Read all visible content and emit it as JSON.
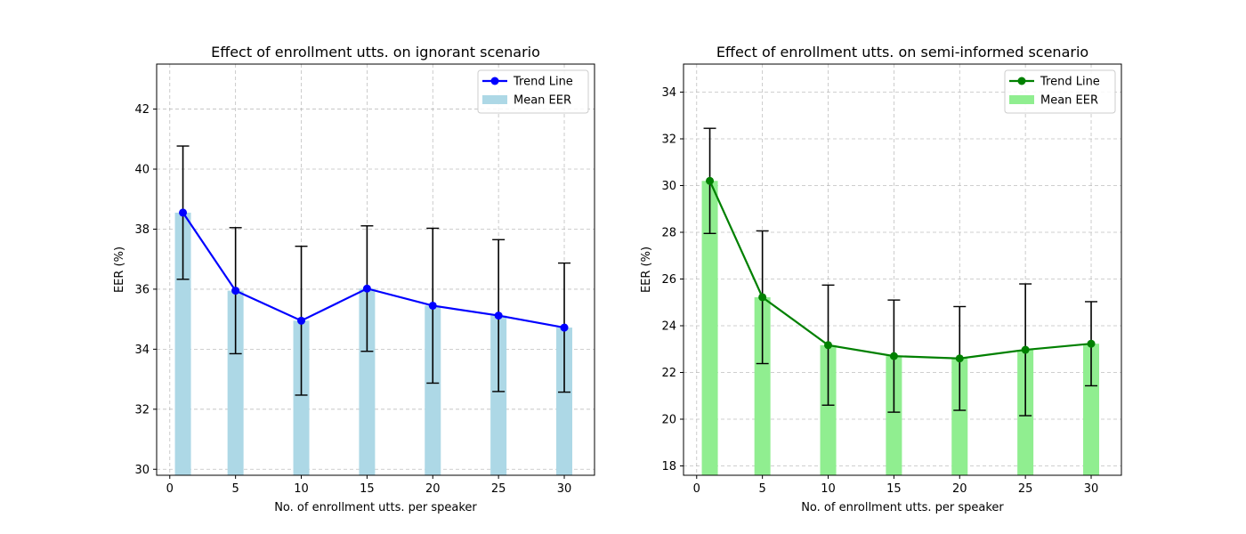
{
  "chart_data": [
    {
      "type": "bar",
      "title": "Effect of enrollment utts. on ignorant scenario",
      "xlabel": "No. of enrollment utts. per speaker",
      "ylabel": "EER (%)",
      "x": [
        1,
        5,
        10,
        15,
        20,
        25,
        30
      ],
      "xticks": [
        0,
        5,
        10,
        15,
        20,
        25,
        30
      ],
      "yticks": [
        30,
        32,
        34,
        36,
        38,
        40,
        42
      ],
      "xlim": [
        -1,
        32.3
      ],
      "ylim": [
        29.8,
        43.5
      ],
      "grid": true,
      "legend_position": "top-right",
      "series": [
        {
          "name": "Mean EER",
          "kind": "bar",
          "values": [
            38.55,
            35.95,
            34.95,
            36.02,
            35.45,
            35.12,
            34.72
          ],
          "color": "#add8e6"
        },
        {
          "name": "Trend Line",
          "kind": "line",
          "values": [
            38.55,
            35.95,
            34.95,
            36.02,
            35.45,
            35.12,
            34.72
          ],
          "color": "#0000ff"
        }
      ],
      "error_bars": {
        "lower": [
          36.33,
          33.85,
          32.47,
          33.93,
          32.87,
          32.59,
          32.57
        ],
        "upper": [
          40.77,
          38.05,
          37.43,
          38.11,
          38.03,
          37.65,
          36.87
        ],
        "color": "#000000"
      }
    },
    {
      "type": "bar",
      "title": "Effect of enrollment utts. on semi-informed scenario",
      "xlabel": "No. of enrollment utts. per speaker",
      "ylabel": "EER (%)",
      "x": [
        1,
        5,
        10,
        15,
        20,
        25,
        30
      ],
      "xticks": [
        0,
        5,
        10,
        15,
        20,
        25,
        30
      ],
      "yticks": [
        18,
        20,
        22,
        24,
        26,
        28,
        30,
        32,
        34
      ],
      "xlim": [
        -1,
        32.3
      ],
      "ylim": [
        17.6,
        35.2
      ],
      "grid": true,
      "legend_position": "top-right",
      "series": [
        {
          "name": "Mean EER",
          "kind": "bar",
          "values": [
            30.2,
            25.22,
            23.17,
            22.7,
            22.6,
            22.97,
            23.23
          ],
          "color": "#90ee90"
        },
        {
          "name": "Trend Line",
          "kind": "line",
          "values": [
            30.2,
            25.22,
            23.17,
            22.7,
            22.6,
            22.97,
            23.23
          ],
          "color": "#008000"
        }
      ],
      "error_bars": {
        "lower": [
          27.95,
          22.38,
          20.6,
          20.3,
          20.38,
          20.15,
          21.43
        ],
        "upper": [
          32.45,
          28.06,
          25.74,
          25.1,
          24.82,
          25.79,
          25.03
        ],
        "color": "#000000"
      }
    }
  ]
}
